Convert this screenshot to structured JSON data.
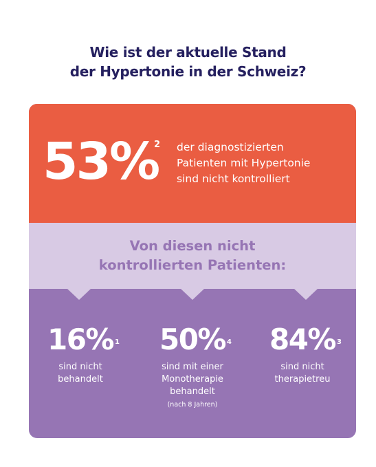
{
  "header": {
    "title_line1": "Wie ist der aktuelle Stand",
    "title_line2": "der Hypertonie in der Schweiz?"
  },
  "headline_stat": {
    "value": "53%",
    "footnote": "2",
    "text_line1": "der diagnostizierten",
    "text_line2": "Patienten mit Hypertonie",
    "text_line3": "sind nicht kontrolliert"
  },
  "band": {
    "line1": "Von diesen nicht",
    "line2": "kontrollierten Patienten:"
  },
  "stats": [
    {
      "value": "16%",
      "footnote": "1",
      "line1": "sind nicht",
      "line2": "behandelt",
      "line3": "",
      "note": ""
    },
    {
      "value": "50%",
      "footnote": "4",
      "line1": "sind mit einer",
      "line2": "Monotherapie",
      "line3": "behandelt",
      "note": "(nach 8 Jahren)"
    },
    {
      "value": "84%",
      "footnote": "3",
      "line1": "sind nicht",
      "line2": "therapietreu",
      "line3": "",
      "note": ""
    }
  ],
  "colors": {
    "title": "#25205f",
    "orange": "#ea5d42",
    "lavender": "#d8cae4",
    "purple": "#9675b4"
  }
}
